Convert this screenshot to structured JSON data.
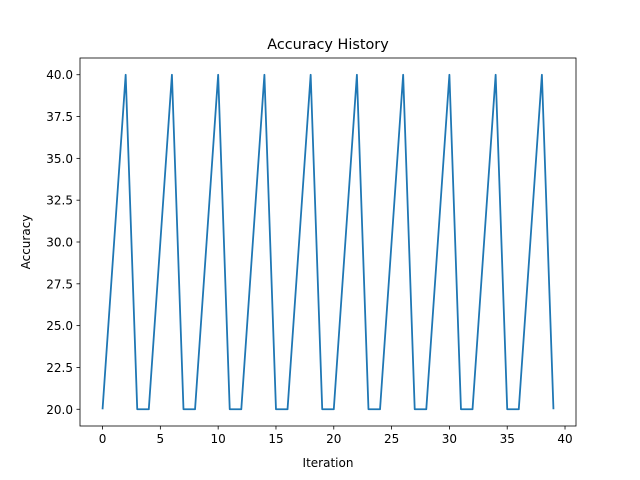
{
  "chart_data": {
    "type": "line",
    "title": "Accuracy History",
    "xlabel": "Iteration",
    "ylabel": "Accuracy",
    "xlim": [
      -1.95,
      40.95
    ],
    "ylim": [
      19.0,
      41.0
    ],
    "xticks": [
      0,
      5,
      10,
      15,
      20,
      25,
      30,
      35,
      40
    ],
    "yticks": [
      20.0,
      22.5,
      25.0,
      27.5,
      30.0,
      32.5,
      35.0,
      37.5,
      40.0
    ],
    "grid": false,
    "series": [
      {
        "color": "#1f77b4",
        "x": [
          0,
          1,
          2,
          3,
          4,
          5,
          6,
          7,
          8,
          9,
          10,
          11,
          12,
          13,
          14,
          15,
          16,
          17,
          18,
          19,
          20,
          21,
          22,
          23,
          24,
          25,
          26,
          27,
          28,
          29,
          30,
          31,
          32,
          33,
          34,
          35,
          36,
          37,
          38,
          39
        ],
        "values": [
          20,
          30,
          40,
          20,
          20,
          30,
          40,
          20,
          20,
          30,
          40,
          20,
          20,
          30,
          40,
          20,
          20,
          30,
          40,
          20,
          20,
          30,
          40,
          20,
          20,
          30,
          40,
          20,
          20,
          30,
          40,
          20,
          20,
          30,
          40,
          20,
          20,
          30,
          40,
          20
        ]
      }
    ]
  }
}
